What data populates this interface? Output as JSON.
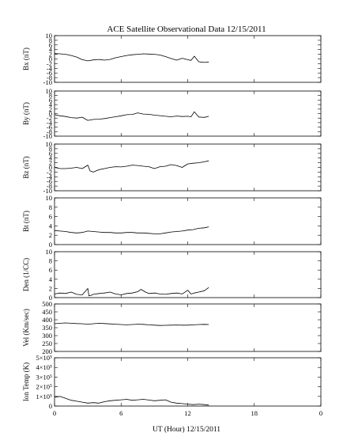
{
  "chart_data": {
    "type": "line",
    "title": "ACE Satellite Observational Data   12/15/2011",
    "xlabel": "UT (Hour)  12/15/2011",
    "xlim": [
      0,
      24
    ],
    "x_tick_labels": [
      "0",
      "6",
      "12",
      "18",
      "0"
    ],
    "grid": false,
    "panels": [
      {
        "id": "bx",
        "ylabel": "Bx (nT)",
        "ylim": [
          -10,
          10
        ],
        "y_tick_labels": [
          "10",
          "8",
          "6",
          "4",
          "2",
          "0",
          "-2",
          "-4",
          "-6",
          "-8",
          "-10"
        ],
        "series": [
          {
            "x": [
              0,
              0.5,
              1,
              1.5,
              2,
              2.5,
              3,
              3.5,
              4,
              4.5,
              5,
              5.5,
              6,
              6.5,
              7,
              7.5,
              8,
              8.5,
              9,
              9.5,
              10,
              10.5,
              11,
              11.5,
              12,
              12.3,
              12.6,
              13,
              13.5,
              13.9
            ],
            "y": [
              2.3,
              2.2,
              2.0,
              1.5,
              0.8,
              -0.3,
              -0.8,
              -0.4,
              -0.2,
              -0.5,
              -0.2,
              0.5,
              1.0,
              1.5,
              1.8,
              2.0,
              2.2,
              2.1,
              2.0,
              1.7,
              1.0,
              0.2,
              -0.5,
              0.3,
              -0.3,
              -0.6,
              1.2,
              -1.2,
              -1.5,
              -1.3
            ]
          }
        ]
      },
      {
        "id": "by",
        "ylabel": "By (nT)",
        "ylim": [
          -10,
          10
        ],
        "y_tick_labels": [
          "10",
          "8",
          "6",
          "4",
          "2",
          "0",
          "-2",
          "-4",
          "-6",
          "-8",
          "-10"
        ],
        "series": [
          {
            "x": [
              0,
              0.5,
              1,
              1.5,
              2,
              2.5,
              3,
              3.5,
              4,
              4.5,
              5,
              5.5,
              6,
              6.5,
              7,
              7.5,
              8,
              8.5,
              9,
              9.5,
              10,
              10.5,
              11,
              11.5,
              12,
              12.3,
              12.6,
              13,
              13.5,
              13.9
            ],
            "y": [
              -0.5,
              -1.0,
              -1.3,
              -1.8,
              -2.0,
              -1.6,
              -3.0,
              -2.6,
              -2.5,
              -2.2,
              -1.8,
              -1.4,
              -1.0,
              -0.5,
              -0.4,
              0.3,
              -0.2,
              -0.3,
              -0.7,
              -0.9,
              -1.2,
              -1.4,
              -1.1,
              -1.3,
              -1.2,
              -1.4,
              0.8,
              -1.5,
              -1.7,
              -1.2
            ]
          }
        ]
      },
      {
        "id": "bz",
        "ylabel": "Bz (nT)",
        "ylim": [
          -10,
          10
        ],
        "y_tick_labels": [
          "10",
          "8",
          "6",
          "4",
          "2",
          "0",
          "-2",
          "-4",
          "-6",
          "-8",
          "-10"
        ],
        "series": [
          {
            "x": [
              0,
              0.5,
              1,
              1.5,
              2,
              2.5,
              3,
              3.2,
              3.5,
              4,
              4.5,
              5,
              5.5,
              6,
              6.5,
              7,
              7.5,
              8,
              8.5,
              9,
              9.5,
              10,
              10.5,
              11,
              11.5,
              12,
              12.5,
              13,
              13.5,
              13.9
            ],
            "y": [
              0.0,
              -0.5,
              -0.5,
              -0.3,
              0.0,
              -0.5,
              1.0,
              -1.5,
              -2.0,
              -1.0,
              -0.5,
              0.0,
              0.3,
              0.2,
              0.5,
              1.0,
              0.8,
              0.5,
              0.3,
              -0.5,
              0.3,
              0.5,
              1.2,
              0.8,
              0.0,
              1.5,
              1.8,
              2.0,
              2.4,
              2.8
            ]
          }
        ]
      },
      {
        "id": "bt",
        "ylabel": "Bt (nT)",
        "ylim": [
          0,
          10
        ],
        "y_tick_labels": [
          "10",
          "8",
          "6",
          "4",
          "2",
          "0"
        ],
        "series": [
          {
            "x": [
              0,
              0.5,
              1,
              1.5,
              2,
              2.5,
              3,
              3.5,
              4,
              4.5,
              5,
              5.5,
              6,
              6.5,
              7,
              7.5,
              8,
              8.5,
              9,
              9.5,
              10,
              10.5,
              11,
              11.5,
              12,
              12.5,
              13,
              13.5,
              13.9
            ],
            "y": [
              3.0,
              2.9,
              2.8,
              2.6,
              2.5,
              2.6,
              2.9,
              2.8,
              2.7,
              2.6,
              2.6,
              2.5,
              2.5,
              2.6,
              2.6,
              2.5,
              2.5,
              2.4,
              2.3,
              2.3,
              2.5,
              2.7,
              2.8,
              2.9,
              3.1,
              3.2,
              3.5,
              3.6,
              3.8
            ]
          }
        ]
      },
      {
        "id": "den",
        "ylabel": "Den (1/CC)",
        "ylim": [
          0,
          10
        ],
        "y_tick_labels": [
          "10",
          "8",
          "6",
          "4",
          "2",
          "0"
        ],
        "series": [
          {
            "x": [
              0,
              0.5,
              1,
              1.5,
              2,
              2.5,
              3,
              3.1,
              3.3,
              3.5,
              4,
              4.5,
              5,
              5.5,
              6,
              6.5,
              7,
              7.5,
              7.8,
              8.2,
              8.5,
              9,
              9.5,
              10,
              10.5,
              11,
              11.5,
              12,
              12.3,
              12.6,
              13,
              13.5,
              13.9
            ],
            "y": [
              0.8,
              1.0,
              0.9,
              1.2,
              0.7,
              0.6,
              2.0,
              0.4,
              0.5,
              0.7,
              0.9,
              1.0,
              1.2,
              0.8,
              0.6,
              0.9,
              1.0,
              1.3,
              1.8,
              1.2,
              0.9,
              1.0,
              0.8,
              0.7,
              0.9,
              1.0,
              0.8,
              1.6,
              0.8,
              1.0,
              1.2,
              1.5,
              2.2
            ]
          }
        ]
      },
      {
        "id": "vel",
        "ylabel": "Vel (Km/sec)",
        "ylim": [
          200,
          500
        ],
        "y_tick_labels": [
          "500",
          "450",
          "400",
          "350",
          "300",
          "250",
          "200"
        ],
        "series": [
          {
            "x": [
              0,
              0.5,
              1,
              1.5,
              2,
              2.5,
              3,
              3.5,
              4,
              4.5,
              5,
              5.5,
              6,
              6.5,
              7,
              7.5,
              8,
              8.5,
              9,
              9.5,
              10,
              10.5,
              11,
              11.5,
              12,
              12.5,
              13,
              13.5,
              13.9
            ],
            "y": [
              375,
              378,
              380,
              378,
              376,
              375,
              372,
              375,
              378,
              376,
              374,
              372,
              370,
              368,
              370,
              372,
              371,
              368,
              366,
              364,
              365,
              366,
              367,
              366,
              366,
              368,
              370,
              371,
              370
            ]
          }
        ]
      },
      {
        "id": "temp",
        "ylabel": "Ion Temp (K)",
        "ylim": [
          0,
          500000
        ],
        "y_tick_labels": [
          "5×10⁵",
          "4×10⁵",
          "3×10⁵",
          "2×10⁵",
          "1×10⁵",
          "0"
        ],
        "series": [
          {
            "x": [
              0,
              0.5,
              1,
              1.5,
              2,
              2.5,
              3,
              3.5,
              4,
              4.5,
              5,
              5.5,
              6,
              6.5,
              7,
              7.5,
              8,
              8.5,
              9,
              9.5,
              10,
              10.5,
              11,
              11.5,
              12,
              12.5,
              13,
              13.5,
              13.9
            ],
            "y": [
              90000,
              100000,
              80000,
              60000,
              50000,
              40000,
              30000,
              35000,
              30000,
              45000,
              55000,
              60000,
              65000,
              70000,
              60000,
              65000,
              70000,
              62000,
              55000,
              60000,
              65000,
              40000,
              30000,
              25000,
              20000,
              15000,
              20000,
              15000,
              10000
            ]
          }
        ]
      }
    ]
  }
}
